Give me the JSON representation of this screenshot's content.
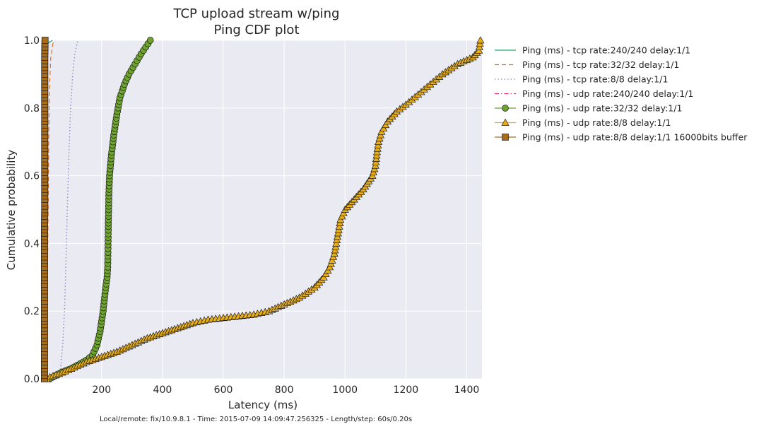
{
  "chart_data": {
    "type": "line",
    "title": "TCP upload stream w/ping",
    "subtitle": "Ping CDF plot",
    "xlabel": "Latency (ms)",
    "ylabel": "Cumulative probability",
    "xlim": [
      10,
      1450
    ],
    "ylim": [
      0,
      1
    ],
    "xticks": [
      200,
      400,
      600,
      800,
      1000,
      1200,
      1400
    ],
    "yticks": [
      0.0,
      0.2,
      0.4,
      0.6,
      0.8,
      1.0
    ],
    "grid": true,
    "legend_position": "outside-right",
    "footer": "Local/remote: fix/10.9.8.1 - Time: 2015-07-09 14:09:47.256325 - Length/step: 60s/0.20s",
    "series": [
      {
        "name": "Ping (ms) - tcp rate:240/240 delay:1/1",
        "color": "#1aaf6c",
        "dash": "solid",
        "marker": "none",
        "points": [
          [
            13,
            0
          ],
          [
            14,
            0.02
          ],
          [
            15,
            0.3
          ],
          [
            16,
            0.6
          ],
          [
            17,
            0.85
          ],
          [
            18,
            0.95
          ],
          [
            22,
            0.99
          ],
          [
            38,
            1.0
          ]
        ]
      },
      {
        "name": "Ping (ms) - tcp rate:32/32 delay:1/1",
        "color": "#e9711c",
        "dash": "dashed",
        "marker": "none",
        "points": [
          [
            18,
            0
          ],
          [
            20,
            0.05
          ],
          [
            22,
            0.3
          ],
          [
            25,
            0.6
          ],
          [
            28,
            0.85
          ],
          [
            33,
            0.95
          ],
          [
            40,
            0.99
          ],
          [
            45,
            1.0
          ]
        ]
      },
      {
        "name": "Ping (ms) - tcp rate:8/8 delay:1/1",
        "color": "#8c86c4",
        "dash": "dotted",
        "marker": "none",
        "points": [
          [
            58,
            0
          ],
          [
            65,
            0.03
          ],
          [
            72,
            0.1
          ],
          [
            78,
            0.2
          ],
          [
            83,
            0.35
          ],
          [
            87,
            0.5
          ],
          [
            92,
            0.65
          ],
          [
            98,
            0.8
          ],
          [
            105,
            0.9
          ],
          [
            112,
            0.96
          ],
          [
            122,
            1.0
          ]
        ]
      },
      {
        "name": "Ping (ms) - udp rate:240/240 delay:1/1",
        "color": "#e6337c",
        "dash": "dashdot",
        "marker": "none",
        "points": [
          [
            15,
            0
          ],
          [
            16,
            0.05
          ],
          [
            17,
            0.4
          ],
          [
            18,
            0.8
          ],
          [
            19,
            0.95
          ],
          [
            21,
            1.0
          ]
        ]
      },
      {
        "name": "Ping (ms) - udp rate:32/32 delay:1/1",
        "color": "#6ea32e",
        "dash": "solid",
        "marker": "circle",
        "points": [
          [
            30,
            0
          ],
          [
            50,
            0.01
          ],
          [
            70,
            0.02
          ],
          [
            100,
            0.03
          ],
          [
            130,
            0.045
          ],
          [
            150,
            0.055
          ],
          [
            170,
            0.07
          ],
          [
            185,
            0.1
          ],
          [
            195,
            0.14
          ],
          [
            205,
            0.2
          ],
          [
            212,
            0.26
          ],
          [
            218,
            0.3
          ],
          [
            220,
            0.33
          ],
          [
            222,
            0.45
          ],
          [
            223,
            0.5
          ],
          [
            224,
            0.55
          ],
          [
            226,
            0.6
          ],
          [
            232,
            0.66
          ],
          [
            240,
            0.72
          ],
          [
            250,
            0.78
          ],
          [
            260,
            0.83
          ],
          [
            275,
            0.87
          ],
          [
            290,
            0.9
          ],
          [
            310,
            0.93
          ],
          [
            330,
            0.96
          ],
          [
            345,
            0.98
          ],
          [
            360,
            1.0
          ]
        ]
      },
      {
        "name": "Ping (ms) - udp rate:8/8 delay:1/1",
        "color": "#e8ac17",
        "dash": "solid",
        "marker": "triangle",
        "points": [
          [
            20,
            0
          ],
          [
            30,
            0.005
          ],
          [
            60,
            0.015
          ],
          [
            100,
            0.03
          ],
          [
            150,
            0.05
          ],
          [
            200,
            0.065
          ],
          [
            250,
            0.08
          ],
          [
            300,
            0.1
          ],
          [
            350,
            0.12
          ],
          [
            400,
            0.135
          ],
          [
            450,
            0.15
          ],
          [
            500,
            0.165
          ],
          [
            550,
            0.175
          ],
          [
            600,
            0.18
          ],
          [
            650,
            0.185
          ],
          [
            700,
            0.19
          ],
          [
            750,
            0.2
          ],
          [
            800,
            0.22
          ],
          [
            850,
            0.24
          ],
          [
            900,
            0.27
          ],
          [
            930,
            0.3
          ],
          [
            950,
            0.33
          ],
          [
            965,
            0.37
          ],
          [
            975,
            0.42
          ],
          [
            985,
            0.47
          ],
          [
            1000,
            0.5
          ],
          [
            1030,
            0.53
          ],
          [
            1060,
            0.56
          ],
          [
            1090,
            0.6
          ],
          [
            1100,
            0.63
          ],
          [
            1105,
            0.67
          ],
          [
            1110,
            0.7
          ],
          [
            1120,
            0.73
          ],
          [
            1140,
            0.76
          ],
          [
            1170,
            0.79
          ],
          [
            1200,
            0.81
          ],
          [
            1240,
            0.84
          ],
          [
            1280,
            0.87
          ],
          [
            1320,
            0.9
          ],
          [
            1370,
            0.93
          ],
          [
            1420,
            0.95
          ],
          [
            1440,
            0.97
          ],
          [
            1445,
            1.0
          ]
        ]
      },
      {
        "name": "Ping (ms) - udp rate:8/8 delay:1/1 16000bits buffer",
        "color": "#a86d1a",
        "dash": "solid",
        "marker": "square",
        "points": [
          [
            12,
            0
          ],
          [
            12,
            0.1
          ],
          [
            12,
            0.2
          ],
          [
            12,
            0.3
          ],
          [
            12,
            0.4
          ],
          [
            13,
            0.5
          ],
          [
            13,
            0.6
          ],
          [
            13,
            0.7
          ],
          [
            13,
            0.8
          ],
          [
            13,
            0.9
          ],
          [
            13,
            0.95
          ],
          [
            14,
            1.0
          ]
        ]
      }
    ]
  }
}
